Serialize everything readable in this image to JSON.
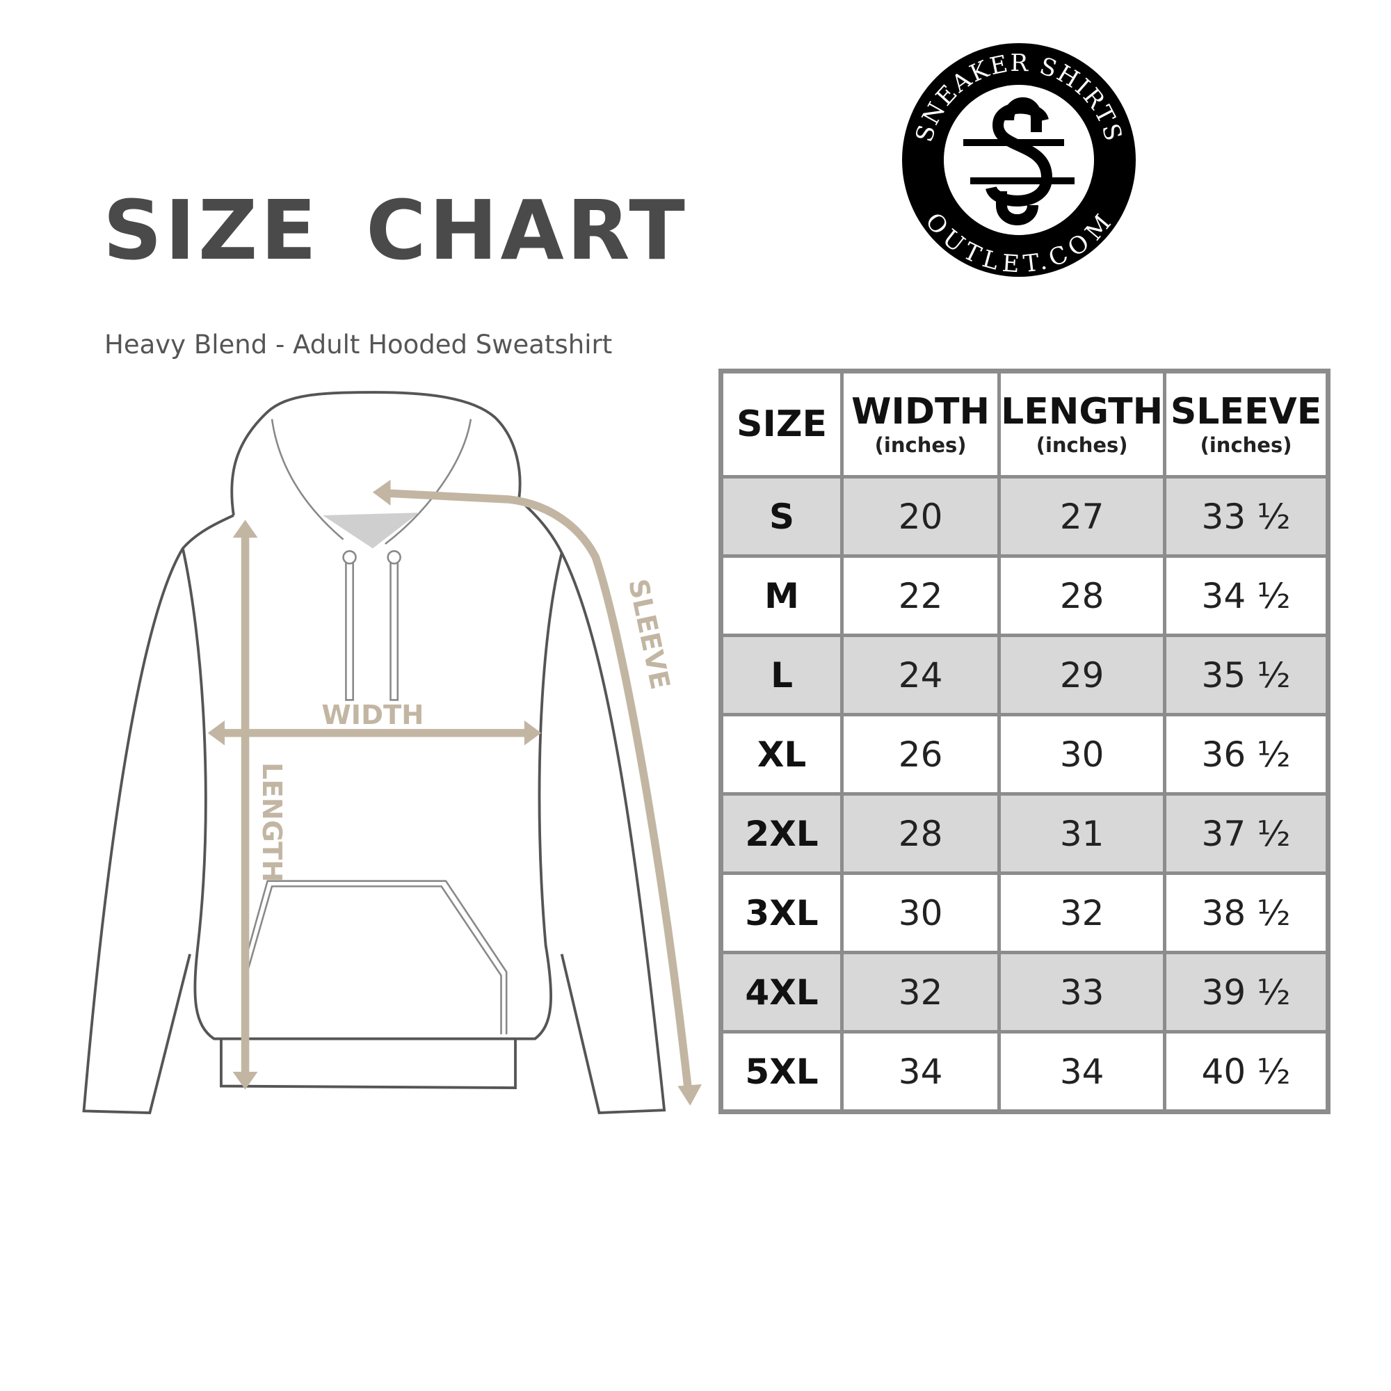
{
  "header": {
    "title": "SIZE CHART",
    "subtitle": "Heavy Blend - Adult Hooded Sweatshirt"
  },
  "logo": {
    "top_text": "SNEAKER SHIRTS",
    "bottom_text": "OUTLET.COM",
    "monogram": "SS"
  },
  "diagram": {
    "width_label": "WIDTH",
    "length_label": "LENGTH",
    "sleeve_label": "SLEEVE",
    "arrow_color": "#c2b6a3",
    "outline_color": "#555555"
  },
  "table": {
    "columns": [
      {
        "label": "SIZE",
        "unit": ""
      },
      {
        "label": "WIDTH",
        "unit": "(inches)"
      },
      {
        "label": "LENGTH",
        "unit": "(inches)"
      },
      {
        "label": "SLEEVE",
        "unit": "(inches)"
      }
    ],
    "rows": [
      [
        "S",
        "20",
        "27",
        "33 ½"
      ],
      [
        "M",
        "22",
        "28",
        "34 ½"
      ],
      [
        "L",
        "24",
        "29",
        "35 ½"
      ],
      [
        "XL",
        "26",
        "30",
        "36 ½"
      ],
      [
        "2XL",
        "28",
        "31",
        "37 ½"
      ],
      [
        "3XL",
        "30",
        "32",
        "38 ½"
      ],
      [
        "4XL",
        "32",
        "33",
        "39 ½"
      ],
      [
        "5XL",
        "34",
        "34",
        "40 ½"
      ]
    ],
    "shade_color": "#d8d8d8",
    "border_color": "#8c8c8c"
  }
}
